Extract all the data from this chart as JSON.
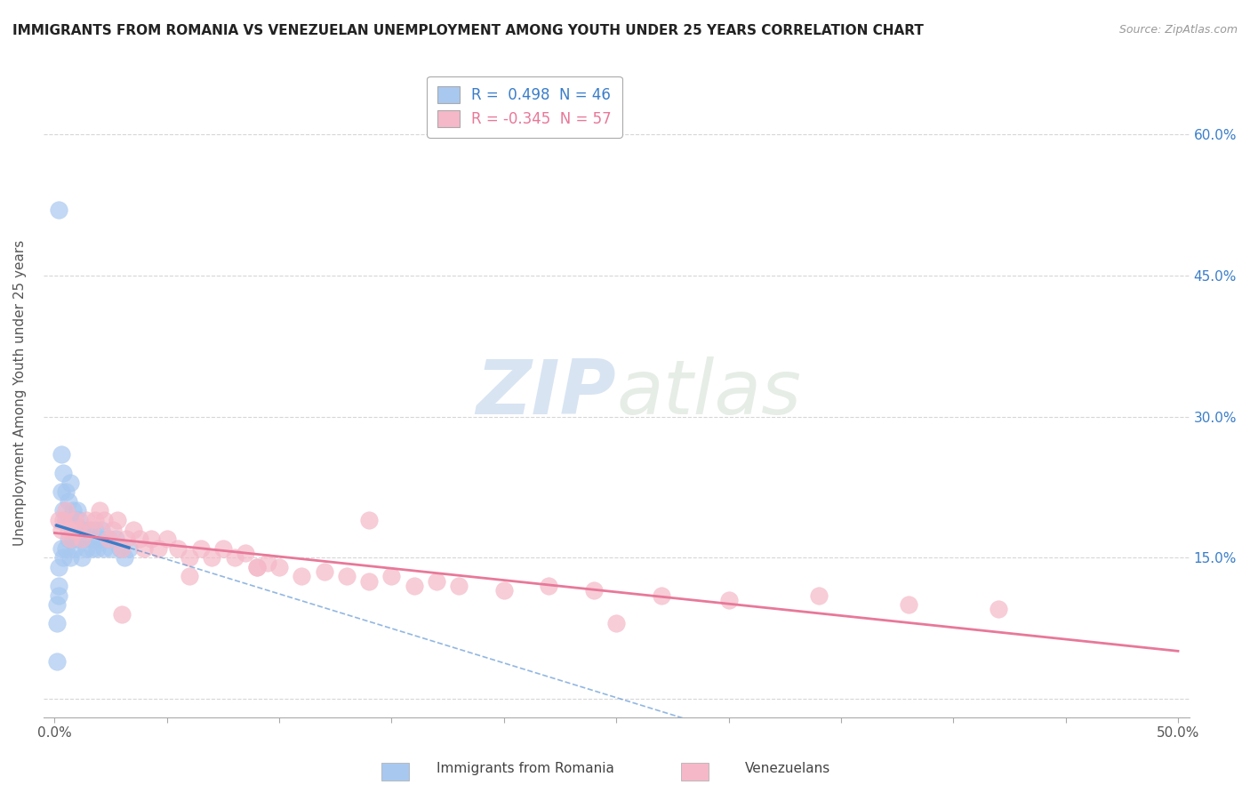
{
  "title": "IMMIGRANTS FROM ROMANIA VS VENEZUELAN UNEMPLOYMENT AMONG YOUTH UNDER 25 YEARS CORRELATION CHART",
  "source": "Source: ZipAtlas.com",
  "ylabel": "Unemployment Among Youth under 25 years",
  "ytick_values": [
    0.0,
    0.15,
    0.3,
    0.45,
    0.6
  ],
  "ytick_labels": [
    "",
    "15.0%",
    "30.0%",
    "45.0%",
    "60.0%"
  ],
  "xtick_values": [
    0.0,
    0.05,
    0.1,
    0.15,
    0.2,
    0.25,
    0.3,
    0.35,
    0.4,
    0.45,
    0.5
  ],
  "xlim": [
    -0.005,
    0.505
  ],
  "ylim": [
    -0.02,
    0.67
  ],
  "romania_color": "#a8c8f0",
  "venezuela_color": "#f5b8c8",
  "romania_line_color": "#3a7dc9",
  "venezuela_line_color": "#e87899",
  "romania_r": 0.498,
  "romania_n": 46,
  "venezuela_r": -0.345,
  "venezuela_n": 57,
  "legend_label_romania": "Immigrants from Romania",
  "legend_label_venezuela": "Venezuelans",
  "watermark_zip": "ZIP",
  "watermark_atlas": "atlas",
  "romania_scatter_x": [
    0.001,
    0.001,
    0.002,
    0.002,
    0.002,
    0.003,
    0.003,
    0.003,
    0.004,
    0.004,
    0.004,
    0.005,
    0.005,
    0.005,
    0.006,
    0.006,
    0.007,
    0.007,
    0.007,
    0.008,
    0.008,
    0.009,
    0.009,
    0.01,
    0.01,
    0.011,
    0.012,
    0.012,
    0.013,
    0.014,
    0.015,
    0.016,
    0.017,
    0.018,
    0.019,
    0.02,
    0.021,
    0.022,
    0.024,
    0.025,
    0.027,
    0.029,
    0.031,
    0.033,
    0.002,
    0.001
  ],
  "romania_scatter_y": [
    0.1,
    0.08,
    0.14,
    0.12,
    0.11,
    0.26,
    0.22,
    0.16,
    0.24,
    0.2,
    0.15,
    0.22,
    0.19,
    0.16,
    0.21,
    0.17,
    0.23,
    0.19,
    0.15,
    0.2,
    0.17,
    0.19,
    0.16,
    0.2,
    0.17,
    0.19,
    0.18,
    0.15,
    0.17,
    0.16,
    0.18,
    0.17,
    0.16,
    0.18,
    0.16,
    0.17,
    0.18,
    0.16,
    0.17,
    0.16,
    0.17,
    0.16,
    0.15,
    0.16,
    0.52,
    0.04
  ],
  "venezuela_scatter_x": [
    0.002,
    0.003,
    0.004,
    0.005,
    0.006,
    0.007,
    0.008,
    0.009,
    0.01,
    0.012,
    0.014,
    0.016,
    0.018,
    0.02,
    0.022,
    0.024,
    0.026,
    0.028,
    0.03,
    0.032,
    0.035,
    0.038,
    0.04,
    0.043,
    0.046,
    0.05,
    0.055,
    0.06,
    0.065,
    0.07,
    0.075,
    0.08,
    0.085,
    0.09,
    0.095,
    0.1,
    0.11,
    0.12,
    0.13,
    0.14,
    0.15,
    0.16,
    0.17,
    0.18,
    0.2,
    0.22,
    0.24,
    0.27,
    0.3,
    0.34,
    0.38,
    0.42,
    0.14,
    0.09,
    0.06,
    0.03,
    0.25
  ],
  "venezuela_scatter_y": [
    0.19,
    0.18,
    0.19,
    0.2,
    0.18,
    0.17,
    0.18,
    0.19,
    0.18,
    0.17,
    0.19,
    0.18,
    0.19,
    0.2,
    0.19,
    0.17,
    0.18,
    0.19,
    0.16,
    0.17,
    0.18,
    0.17,
    0.16,
    0.17,
    0.16,
    0.17,
    0.16,
    0.15,
    0.16,
    0.15,
    0.16,
    0.15,
    0.155,
    0.14,
    0.145,
    0.14,
    0.13,
    0.135,
    0.13,
    0.125,
    0.13,
    0.12,
    0.125,
    0.12,
    0.115,
    0.12,
    0.115,
    0.11,
    0.105,
    0.11,
    0.1,
    0.095,
    0.19,
    0.14,
    0.13,
    0.09,
    0.08
  ]
}
